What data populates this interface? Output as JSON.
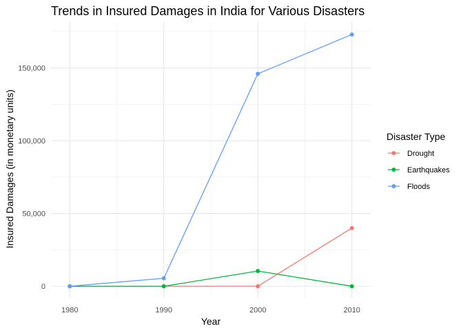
{
  "chart_data": {
    "type": "line",
    "title": "Trends in Insured Damages in India for Various Disasters",
    "xlabel": "Year",
    "ylabel": "Insured Damages (in monetary units)",
    "x": [
      1980,
      1990,
      2000,
      2010
    ],
    "xlim": [
      1978,
      2012
    ],
    "ylim": [
      -8000,
      182000
    ],
    "y_ticks": [
      0,
      50000,
      100000,
      150000
    ],
    "y_tick_labels": [
      "0",
      "50,000",
      "100,000",
      "150,000"
    ],
    "x_tick_labels": [
      "1980",
      "1990",
      "2000",
      "2010"
    ],
    "grid": true,
    "legend": {
      "title": "Disaster Type",
      "placement": "right"
    },
    "series": [
      {
        "name": "Drought",
        "color": "#F8766D",
        "values": [
          0,
          0,
          0,
          40000
        ]
      },
      {
        "name": "Earthquakes",
        "color": "#00BA38",
        "values": [
          0,
          0,
          10500,
          0
        ]
      },
      {
        "name": "Floods",
        "color": "#619CFF",
        "values": [
          0,
          5500,
          146000,
          173000
        ]
      }
    ]
  }
}
